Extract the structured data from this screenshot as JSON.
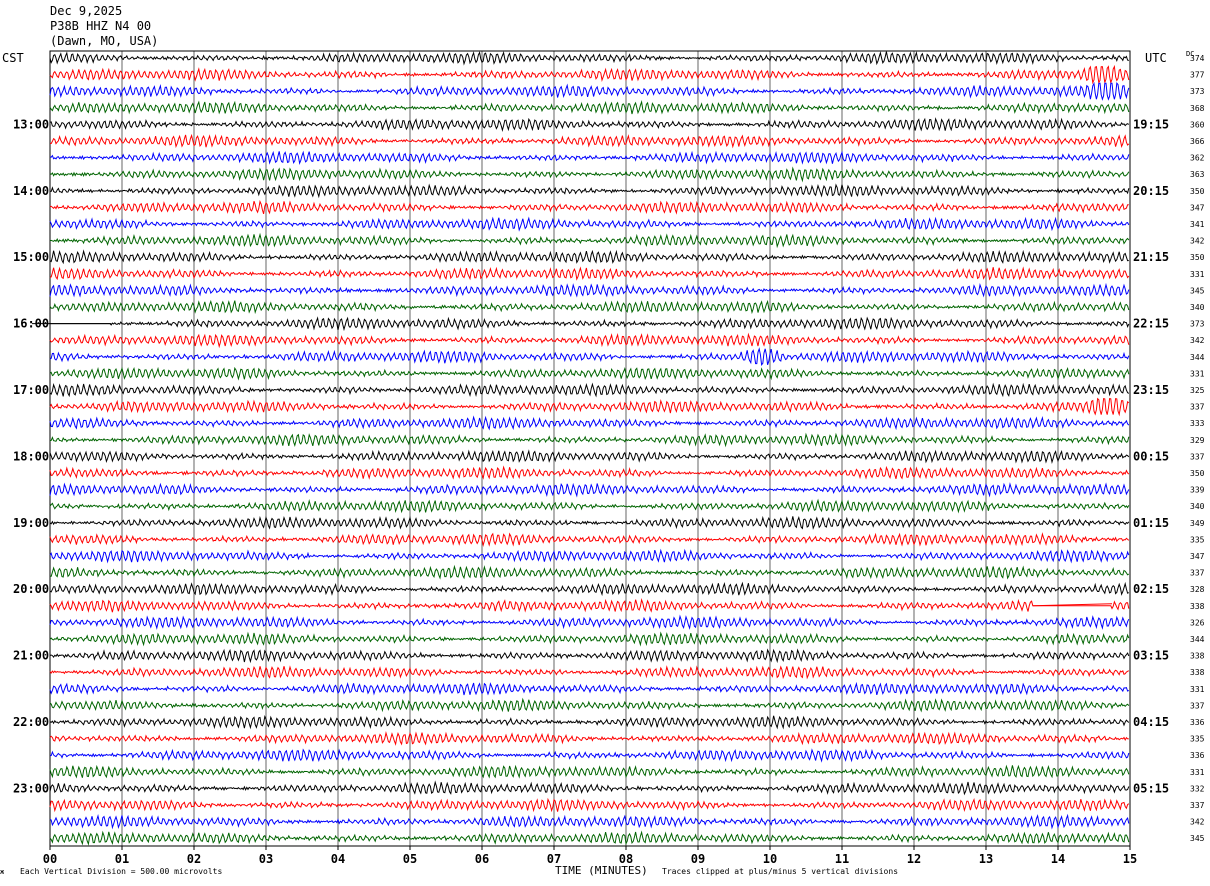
{
  "header": {
    "date": "Dec 9,2025",
    "station": "P38B HHZ N4 00",
    "location": "(Dawn, MO, USA)"
  },
  "left_tz": "CST",
  "right_tz": "UTC",
  "dc_label": "DC",
  "footer": {
    "scale": "Each Vertical Division =  500.00 microvolts",
    "xlabel": "TIME (MINUTES)",
    "clip_note": "Traces clipped at plus/minus 5 vertical divisions",
    "corner_mark": "ж"
  },
  "colors": {
    "trace_cycle": [
      "#000000",
      "#ff0000",
      "#0000ff",
      "#006400"
    ],
    "grid": "#000000",
    "background": "#ffffff"
  },
  "chart_data": {
    "type": "line",
    "title": "Dec 9,2025 P38B HHZ N4 00 (Dawn, MO, USA)",
    "xlabel": "TIME (MINUTES)",
    "xlim": [
      0,
      15
    ],
    "x_ticks": [
      "00",
      "01",
      "02",
      "03",
      "04",
      "05",
      "06",
      "07",
      "08",
      "09",
      "10",
      "11",
      "12",
      "13",
      "14",
      "15"
    ],
    "rows_per_hour": 4,
    "row_count": 48,
    "left_hour_labels": [
      "13:00",
      "14:00",
      "15:00",
      "16:00",
      "17:00",
      "18:00",
      "19:00",
      "20:00",
      "21:00",
      "22:00",
      "23:00"
    ],
    "right_hour_labels": [
      "19:15",
      "20:15",
      "21:15",
      "22:15",
      "23:15",
      "00:15",
      "01:15",
      "02:15",
      "03:15",
      "04:15",
      "05:15"
    ],
    "dc_offsets": [
      374,
      377,
      373,
      368,
      360,
      366,
      362,
      363,
      350,
      347,
      341,
      342,
      350,
      331,
      345,
      340,
      373,
      342,
      344,
      331,
      325,
      337,
      333,
      329,
      337,
      350,
      339,
      340,
      349,
      335,
      347,
      337,
      328,
      338,
      326,
      344,
      338,
      338,
      331,
      337,
      336,
      335,
      336,
      331,
      332,
      337,
      342,
      345
    ],
    "vertical_division_microvolts": 500.0,
    "clip_divisions": 5,
    "events": [
      {
        "row": 1,
        "minute": 14.6,
        "note": "burst"
      },
      {
        "row": 2,
        "minute": 14.7,
        "note": "burst"
      },
      {
        "row": 16,
        "minute": 0.3,
        "note": "data gap"
      },
      {
        "row": 18,
        "minute": 9.9,
        "note": "burst"
      },
      {
        "row": 21,
        "minute": 14.7,
        "note": "burst"
      },
      {
        "row": 33,
        "minute": 14.2,
        "note": "data gap"
      }
    ]
  }
}
